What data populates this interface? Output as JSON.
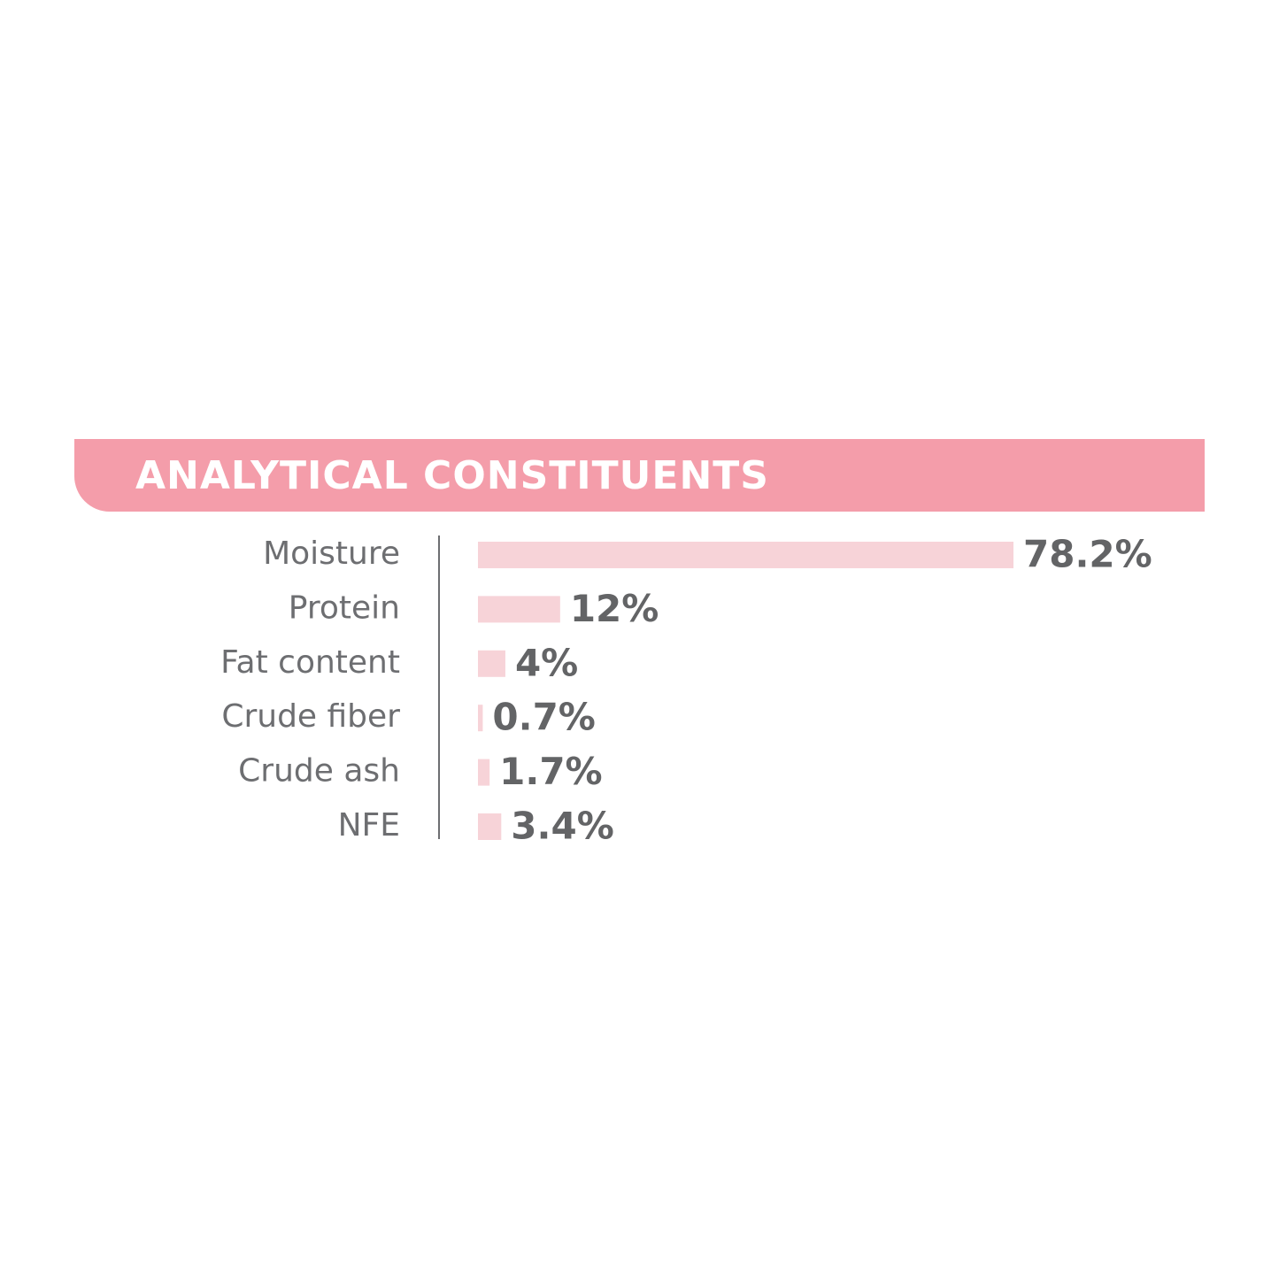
{
  "chart_data": {
    "type": "bar",
    "orientation": "horizontal",
    "title": "ANALYTICAL CONSTITUENTS",
    "categories": [
      "Moisture",
      "Protein",
      "Fat content",
      "Crude fiber",
      "Crude ash",
      "NFE"
    ],
    "values": [
      78.2,
      12,
      4,
      0.7,
      1.7,
      3.4
    ],
    "value_labels": [
      "78.2%",
      "12%",
      "4%",
      "0.7%",
      "1.7%",
      "3.4%"
    ],
    "color": "#f7d3d8",
    "header_color": "#f49daa"
  }
}
